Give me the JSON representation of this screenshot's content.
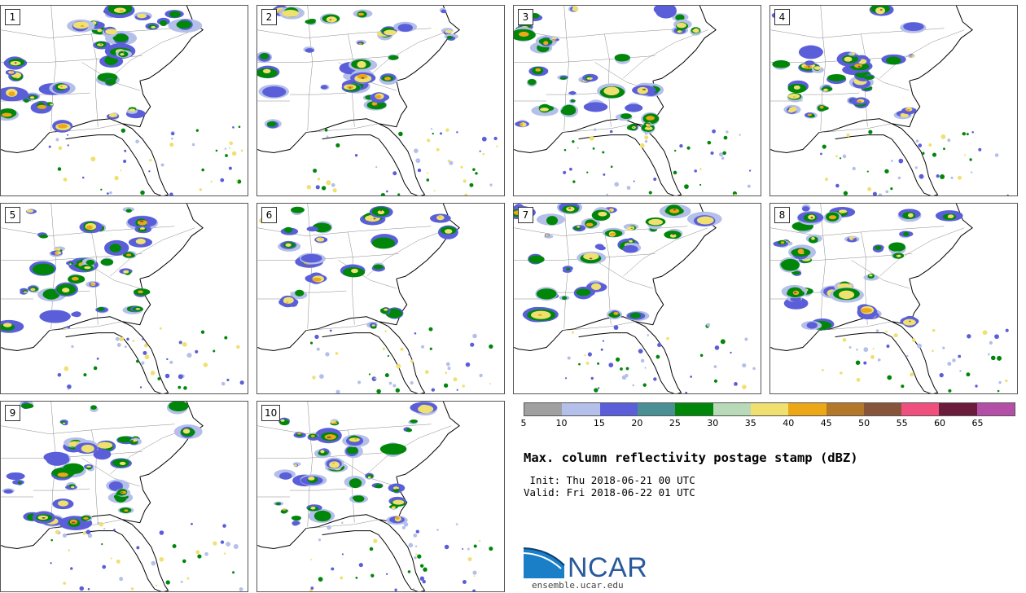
{
  "panels": [
    {
      "label": "1"
    },
    {
      "label": "2"
    },
    {
      "label": "3"
    },
    {
      "label": "4"
    },
    {
      "label": "5"
    },
    {
      "label": "6"
    },
    {
      "label": "7"
    },
    {
      "label": "8"
    },
    {
      "label": "9"
    },
    {
      "label": "10"
    }
  ],
  "colorbar": {
    "colors": [
      "#a0a0a0",
      "#b4bfea",
      "#5a5fd9",
      "#4a8f93",
      "#00870a",
      "#b8dab8",
      "#f0e070",
      "#eda818",
      "#b3782a",
      "#87553a",
      "#f0507e",
      "#6b1c3a",
      "#b44fa8"
    ],
    "tick_labels": [
      "5",
      "10",
      "15",
      "20",
      "25",
      "30",
      "35",
      "40",
      "45",
      "50",
      "55",
      "60",
      "65"
    ]
  },
  "title": "Max. column reflectivity postage stamp (dBZ)",
  "init": " Init: Thu 2018-06-21 00 UTC",
  "valid": "Valid: Fri 2018-06-22 01 UTC",
  "logo": {
    "text": "NCAR",
    "url": "ensemble.ucar.edu",
    "accent": "#1a7fc6"
  }
}
